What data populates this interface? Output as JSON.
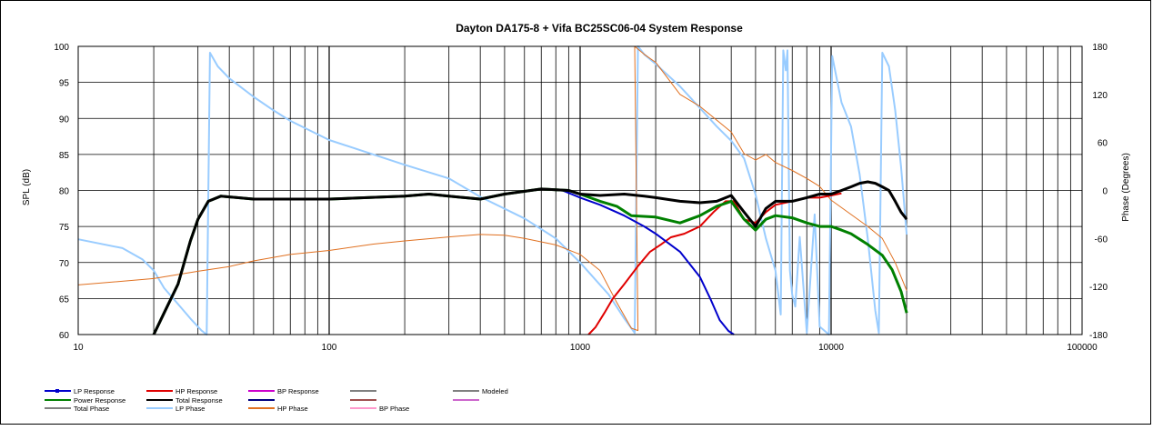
{
  "chart_data": {
    "type": "line",
    "title": "Dayton DA175-8  + Vifa BC25SC06-04     System Response",
    "xlabel": "",
    "ylabel": "SPL (dB)",
    "y2label": "Phase (Degrees)",
    "xscale": "log",
    "xlim": [
      10,
      100000
    ],
    "ylim": [
      60,
      100
    ],
    "y2lim": [
      -180,
      180
    ],
    "grid": true,
    "legend_position": "bottom-left",
    "x_ticks": [
      10,
      100,
      1000,
      10000,
      100000
    ],
    "x_tick_labels": [
      "10",
      "100",
      "1000",
      "10000",
      "100000"
    ],
    "y_ticks": [
      60,
      65,
      70,
      75,
      80,
      85,
      90,
      95,
      100
    ],
    "y_tick_labels": [
      "60",
      "65",
      "70",
      "75",
      "80",
      "85",
      "90",
      "95",
      "100"
    ],
    "y2_ticks": [
      -180,
      -120,
      -60,
      0,
      60,
      120,
      180
    ],
    "y2_tick_labels": [
      "-180",
      "-120",
      "-60",
      "0",
      "60",
      "120",
      "180"
    ],
    "legend": [
      {
        "name": "LP Response",
        "color": "#0000cc",
        "marker": true
      },
      {
        "name": "HP Response",
        "color": "#e00000",
        "marker": false
      },
      {
        "name": "BP Response",
        "color": "#cc00cc",
        "marker": false
      },
      {
        "name": "",
        "color": "#808080",
        "marker": false
      },
      {
        "name": "Modeled",
        "color": "#808080",
        "marker": false
      },
      {
        "name": "Power Response",
        "color": "#008000",
        "marker": false
      },
      {
        "name": "Total Response",
        "color": "#000000",
        "marker": false
      },
      {
        "name": "",
        "color": "#000080",
        "marker": false
      },
      {
        "name": "",
        "color": "#a05050",
        "marker": false
      },
      {
        "name": "",
        "color": "#cc66cc",
        "marker": false
      },
      {
        "name": "Total Phase",
        "color": "#808080",
        "marker": false
      },
      {
        "name": "LP Phase",
        "color": "#99ccff",
        "marker": false
      },
      {
        "name": "HP Phase",
        "color": "#e07020",
        "marker": false
      },
      {
        "name": "BP Phase",
        "color": "#ff99cc",
        "marker": false
      }
    ],
    "series": [
      {
        "key": "lp_phase",
        "axis": "y2",
        "color": "#99ccff",
        "width": 2,
        "points": [
          [
            10,
            -61
          ],
          [
            15,
            -72
          ],
          [
            18,
            -86
          ],
          [
            20,
            -100
          ],
          [
            22,
            -122
          ],
          [
            25,
            -142
          ],
          [
            28,
            -160
          ],
          [
            31,
            -175
          ],
          [
            32.5,
            -180
          ],
          [
            33.5,
            172
          ],
          [
            36,
            155
          ],
          [
            40,
            140
          ],
          [
            50,
            117
          ],
          [
            60,
            100
          ],
          [
            70,
            87
          ],
          [
            100,
            63
          ],
          [
            150,
            45
          ],
          [
            200,
            32
          ],
          [
            300,
            15
          ],
          [
            400,
            -8
          ],
          [
            600,
            -35
          ],
          [
            800,
            -60
          ],
          [
            1000,
            -90
          ],
          [
            1300,
            -130
          ],
          [
            1500,
            -160
          ],
          [
            1650,
            -178
          ],
          [
            1700,
            180
          ],
          [
            1800,
            170
          ],
          [
            2000,
            158
          ],
          [
            2500,
            130
          ],
          [
            3000,
            103
          ],
          [
            3500,
            80
          ],
          [
            4000,
            62
          ],
          [
            4500,
            40
          ],
          [
            5000,
            -5
          ],
          [
            5500,
            -60
          ],
          [
            6000,
            -100
          ],
          [
            6300,
            -155
          ],
          [
            6450,
            175
          ],
          [
            6600,
            150
          ],
          [
            6700,
            175
          ],
          [
            6850,
            -100
          ],
          [
            7000,
            -130
          ],
          [
            7200,
            -145
          ],
          [
            7500,
            -58
          ],
          [
            8000,
            -178
          ],
          [
            8600,
            -30
          ],
          [
            9000,
            -170
          ],
          [
            9800,
            -180
          ],
          [
            10100,
            168
          ],
          [
            11000,
            110
          ],
          [
            12000,
            80
          ],
          [
            13000,
            20
          ],
          [
            14000,
            -60
          ],
          [
            15000,
            -150
          ],
          [
            15500,
            -178
          ],
          [
            16000,
            172
          ],
          [
            17000,
            155
          ],
          [
            18000,
            100
          ],
          [
            19000,
            30
          ],
          [
            20000,
            -55
          ]
        ]
      },
      {
        "key": "hp_phase",
        "axis": "y2",
        "color": "#e07020",
        "width": 1,
        "points": [
          [
            10,
            -118
          ],
          [
            20,
            -110
          ],
          [
            30,
            -101
          ],
          [
            40,
            -95
          ],
          [
            50,
            -88
          ],
          [
            70,
            -80
          ],
          [
            100,
            -75
          ],
          [
            150,
            -67
          ],
          [
            200,
            -63
          ],
          [
            300,
            -58
          ],
          [
            400,
            -55
          ],
          [
            500,
            -56
          ],
          [
            600,
            -60
          ],
          [
            800,
            -68
          ],
          [
            1000,
            -80
          ],
          [
            1200,
            -100
          ],
          [
            1400,
            -140
          ],
          [
            1600,
            -172
          ],
          [
            1700,
            -175
          ],
          [
            1650,
            180
          ],
          [
            1800,
            170
          ],
          [
            2000,
            160
          ],
          [
            2500,
            120
          ],
          [
            3000,
            105
          ],
          [
            4000,
            73
          ],
          [
            4500,
            46
          ],
          [
            5000,
            38
          ],
          [
            5500,
            45
          ],
          [
            6000,
            35
          ],
          [
            7000,
            25
          ],
          [
            8000,
            15
          ],
          [
            9000,
            5
          ],
          [
            10000,
            -12
          ],
          [
            12000,
            -30
          ],
          [
            14000,
            -45
          ],
          [
            16000,
            -60
          ],
          [
            18000,
            -90
          ],
          [
            20000,
            -125
          ]
        ]
      },
      {
        "key": "hp_response",
        "axis": "y",
        "color": "#e00000",
        "width": 2,
        "points": [
          [
            1080,
            60
          ],
          [
            1150,
            61
          ],
          [
            1250,
            63
          ],
          [
            1350,
            65
          ],
          [
            1500,
            67
          ],
          [
            1700,
            69.5
          ],
          [
            1900,
            71.5
          ],
          [
            2100,
            72.5
          ],
          [
            2300,
            73.5
          ],
          [
            2600,
            74
          ],
          [
            3000,
            75
          ],
          [
            3400,
            77
          ],
          [
            3800,
            78.5
          ],
          [
            4100,
            78.5
          ],
          [
            4500,
            76
          ],
          [
            5000,
            75.5
          ],
          [
            5500,
            77
          ],
          [
            6000,
            78
          ],
          [
            7000,
            78.5
          ],
          [
            8000,
            79
          ],
          [
            9000,
            79
          ],
          [
            10000,
            79.3
          ],
          [
            11000,
            79.6
          ]
        ]
      },
      {
        "key": "lp_response",
        "axis": "y",
        "color": "#0000cc",
        "width": 2,
        "points": [
          [
            20,
            60
          ],
          [
            22,
            63
          ],
          [
            25,
            67
          ],
          [
            28,
            73
          ],
          [
            30,
            76
          ],
          [
            33,
            78.5
          ],
          [
            37,
            79.2
          ],
          [
            50,
            78.8
          ],
          [
            100,
            78.8
          ],
          [
            200,
            79.2
          ],
          [
            250,
            79.5
          ],
          [
            300,
            79.2
          ],
          [
            400,
            78.8
          ],
          [
            500,
            79.5
          ],
          [
            700,
            80.2
          ],
          [
            850,
            80
          ],
          [
            1000,
            79
          ],
          [
            1200,
            78
          ],
          [
            1500,
            76.5
          ],
          [
            1800,
            75
          ],
          [
            2000,
            74
          ],
          [
            2500,
            71.5
          ],
          [
            3000,
            68
          ],
          [
            3300,
            65
          ],
          [
            3600,
            62
          ],
          [
            3900,
            60.5
          ],
          [
            4100,
            60
          ]
        ]
      },
      {
        "key": "power_response",
        "axis": "y",
        "color": "#008000",
        "width": 3,
        "points": [
          [
            20,
            60
          ],
          [
            22,
            63
          ],
          [
            25,
            67
          ],
          [
            28,
            73
          ],
          [
            30,
            76
          ],
          [
            33,
            78.5
          ],
          [
            37,
            79.2
          ],
          [
            50,
            78.8
          ],
          [
            100,
            78.8
          ],
          [
            200,
            79.2
          ],
          [
            250,
            79.5
          ],
          [
            300,
            79.2
          ],
          [
            400,
            78.8
          ],
          [
            500,
            79.5
          ],
          [
            700,
            80.2
          ],
          [
            900,
            80
          ],
          [
            1000,
            79.5
          ],
          [
            1200,
            78.5
          ],
          [
            1400,
            77.8
          ],
          [
            1600,
            76.5
          ],
          [
            2000,
            76.3
          ],
          [
            2500,
            75.5
          ],
          [
            3000,
            76.5
          ],
          [
            3500,
            77.8
          ],
          [
            4000,
            78.5
          ],
          [
            4500,
            76
          ],
          [
            5000,
            74.5
          ],
          [
            5500,
            76
          ],
          [
            6000,
            76.5
          ],
          [
            7000,
            76.2
          ],
          [
            8000,
            75.5
          ],
          [
            9000,
            75
          ],
          [
            10000,
            75
          ],
          [
            11000,
            74.5
          ],
          [
            12000,
            74
          ],
          [
            14000,
            72.5
          ],
          [
            16000,
            71
          ],
          [
            17500,
            69
          ],
          [
            19000,
            66
          ],
          [
            20000,
            63
          ]
        ]
      },
      {
        "key": "total_response",
        "axis": "y",
        "color": "#000000",
        "width": 3,
        "points": [
          [
            20,
            60
          ],
          [
            22,
            63
          ],
          [
            25,
            67
          ],
          [
            28,
            73
          ],
          [
            30,
            76
          ],
          [
            33,
            78.5
          ],
          [
            37,
            79.2
          ],
          [
            50,
            78.8
          ],
          [
            100,
            78.8
          ],
          [
            200,
            79.2
          ],
          [
            250,
            79.5
          ],
          [
            300,
            79.2
          ],
          [
            400,
            78.8
          ],
          [
            500,
            79.5
          ],
          [
            700,
            80.2
          ],
          [
            900,
            80
          ],
          [
            1000,
            79.5
          ],
          [
            1200,
            79.3
          ],
          [
            1500,
            79.5
          ],
          [
            1800,
            79.2
          ],
          [
            2000,
            79
          ],
          [
            2500,
            78.5
          ],
          [
            3000,
            78.3
          ],
          [
            3500,
            78.5
          ],
          [
            4000,
            79.3
          ],
          [
            4500,
            77
          ],
          [
            5000,
            75
          ],
          [
            5500,
            77.5
          ],
          [
            6000,
            78.5
          ],
          [
            7000,
            78.5
          ],
          [
            8000,
            79
          ],
          [
            9000,
            79.5
          ],
          [
            10000,
            79.5
          ],
          [
            11000,
            80
          ],
          [
            12000,
            80.5
          ],
          [
            13000,
            81
          ],
          [
            14000,
            81.2
          ],
          [
            15000,
            81
          ],
          [
            16000,
            80.5
          ],
          [
            17000,
            80
          ],
          [
            18000,
            78.5
          ],
          [
            19000,
            77
          ],
          [
            20000,
            76
          ]
        ]
      }
    ]
  }
}
